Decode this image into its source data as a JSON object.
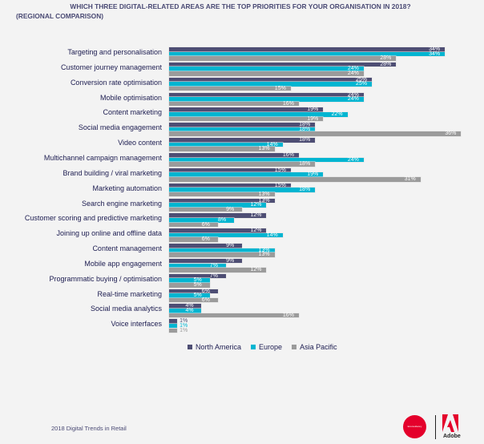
{
  "title": {
    "line1": "WHICH THREE DIGITAL-RELATED AREAS ARE THE TOP PRIORITIES FOR YOUR ORGANISATION IN 2018?",
    "line2": "(REGIONAL COMPARISON)"
  },
  "chart_data": {
    "type": "bar",
    "orientation": "horizontal",
    "title": "WHICH THREE DIGITAL-RELATED AREAS ARE THE TOP PRIORITIES FOR YOUR ORGANISATION IN 2018? (REGIONAL COMPARISON)",
    "categories": [
      "Targeting and personalisation",
      "Customer journey management",
      "Conversion rate optimisation",
      "Mobile optimisation",
      "Content marketing",
      "Social media engagement",
      "Video content",
      "Multichannel campaign management",
      "Brand building / viral marketing",
      "Marketing automation",
      "Search engine marketing",
      "Customer scoring and predictive marketing",
      "Joining up online and offline data",
      "Content management",
      "Mobile app engagement",
      "Programmatic buying / optimisation",
      "Real-time marketing",
      "Social media analytics",
      "Voice interfaces"
    ],
    "series": [
      {
        "name": "North America",
        "color": "#4e4e74",
        "values": [
          34,
          28,
          25,
          24,
          19,
          18,
          18,
          16,
          15,
          15,
          13,
          12,
          12,
          9,
          9,
          7,
          6,
          4,
          1
        ]
      },
      {
        "name": "Europe",
        "color": "#00b5d1",
        "values": [
          34,
          24,
          25,
          24,
          22,
          18,
          14,
          24,
          19,
          18,
          12,
          8,
          14,
          13,
          7,
          5,
          5,
          4,
          1
        ]
      },
      {
        "name": "Asia Pacific",
        "color": "#9b9b9b",
        "values": [
          28,
          24,
          15,
          16,
          19,
          36,
          13,
          18,
          31,
          13,
          9,
          6,
          6,
          13,
          12,
          5,
          6,
          16,
          1
        ]
      }
    ],
    "value_suffix": "%",
    "legend": "bottom",
    "grid": false
  },
  "footer": {
    "text": "2018 Digital Trends in Retail",
    "logo1": "Econsultancy",
    "logo2": "Adobe"
  }
}
